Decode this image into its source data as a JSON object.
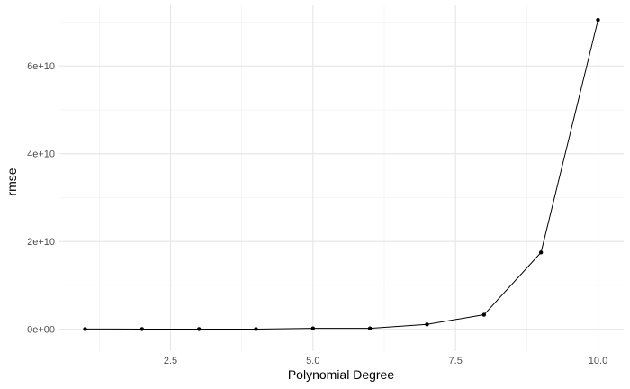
{
  "chart_data": {
    "type": "line",
    "xlabel": "Polynomial Degree",
    "ylabel": "rmse",
    "xlim": [
      0.55,
      10.45
    ],
    "ylim": [
      -5000000000,
      74000000000
    ],
    "x_ticks": [
      2.5,
      5.0,
      7.5,
      10.0
    ],
    "x_tick_labels": [
      "2.5",
      "5.0",
      "7.5",
      "10.0"
    ],
    "y_ticks": [
      0,
      20000000000,
      40000000000,
      60000000000
    ],
    "y_tick_labels": [
      "0e+00",
      "2e+10",
      "4e+10",
      "6e+10"
    ],
    "grid": true,
    "series": [
      {
        "x": [
          1,
          2,
          3,
          4,
          5,
          6,
          7,
          8,
          9,
          10
        ],
        "values": [
          50000000,
          40000000,
          30000000,
          40000000,
          200000000,
          200000000,
          1100000000,
          3300000000,
          17500000000,
          70500000000
        ],
        "color": "#000000"
      }
    ]
  }
}
